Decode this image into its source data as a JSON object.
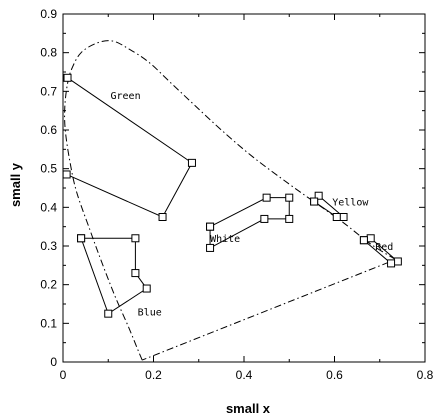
{
  "chart_data": {
    "type": "scatter",
    "xlabel": "small x",
    "ylabel": "small y",
    "xlim": [
      0,
      0.8
    ],
    "ylim": [
      0,
      0.9
    ],
    "xticks": [
      "0",
      "0.2",
      "0.4",
      "0.6",
      "0.8"
    ],
    "xtick_values": [
      0,
      0.2,
      0.4,
      0.6,
      0.8
    ],
    "yticks": [
      "0",
      "0.1",
      "0.2",
      "0.3",
      "0.4",
      "0.5",
      "0.6",
      "0.7",
      "0.8",
      "0.9"
    ],
    "ytick_values": [
      0,
      0.1,
      0.2,
      0.3,
      0.4,
      0.5,
      0.6,
      0.7,
      0.8,
      0.9
    ],
    "grid": false,
    "spectral_locus": {
      "x": [
        0.175,
        0.166,
        0.145,
        0.115,
        0.085,
        0.06,
        0.03,
        0.015,
        0.005,
        0.004,
        0.01,
        0.02,
        0.04,
        0.075,
        0.11,
        0.145,
        0.19,
        0.24,
        0.29,
        0.35,
        0.42,
        0.5,
        0.56,
        0.62,
        0.68,
        0.735,
        0.175
      ],
      "y": [
        0.005,
        0.03,
        0.09,
        0.17,
        0.26,
        0.34,
        0.44,
        0.52,
        0.6,
        0.66,
        0.72,
        0.76,
        0.8,
        0.825,
        0.83,
        0.81,
        0.775,
        0.72,
        0.665,
        0.6,
        0.53,
        0.46,
        0.41,
        0.36,
        0.305,
        0.265,
        0.005
      ]
    },
    "series": [
      {
        "name": "Green",
        "label_x": 0.105,
        "label_y": 0.68,
        "x": [
          0.01,
          0.285,
          0.22,
          0.008
        ],
        "y": [
          0.735,
          0.515,
          0.375,
          0.485
        ]
      },
      {
        "name": "Blue",
        "label_x": 0.165,
        "label_y": 0.12,
        "x": [
          0.04,
          0.16,
          0.16,
          0.185,
          0.1,
          0.04
        ],
        "y": [
          0.32,
          0.32,
          0.23,
          0.19,
          0.125,
          0.32
        ]
      },
      {
        "name": "White",
        "label_x": 0.325,
        "label_y": 0.31,
        "x": [
          0.325,
          0.45,
          0.5,
          0.5,
          0.445,
          0.325,
          0.325
        ],
        "y": [
          0.35,
          0.425,
          0.425,
          0.37,
          0.37,
          0.295,
          0.35
        ]
      },
      {
        "name": "Yellow",
        "label_x": 0.595,
        "label_y": 0.405,
        "x": [
          0.555,
          0.565,
          0.62,
          0.605,
          0.555
        ],
        "y": [
          0.415,
          0.43,
          0.375,
          0.375,
          0.415
        ]
      },
      {
        "name": "Red",
        "label_x": 0.69,
        "label_y": 0.29,
        "x": [
          0.665,
          0.68,
          0.74,
          0.725,
          0.665
        ],
        "y": [
          0.315,
          0.32,
          0.26,
          0.255,
          0.315
        ]
      }
    ]
  }
}
